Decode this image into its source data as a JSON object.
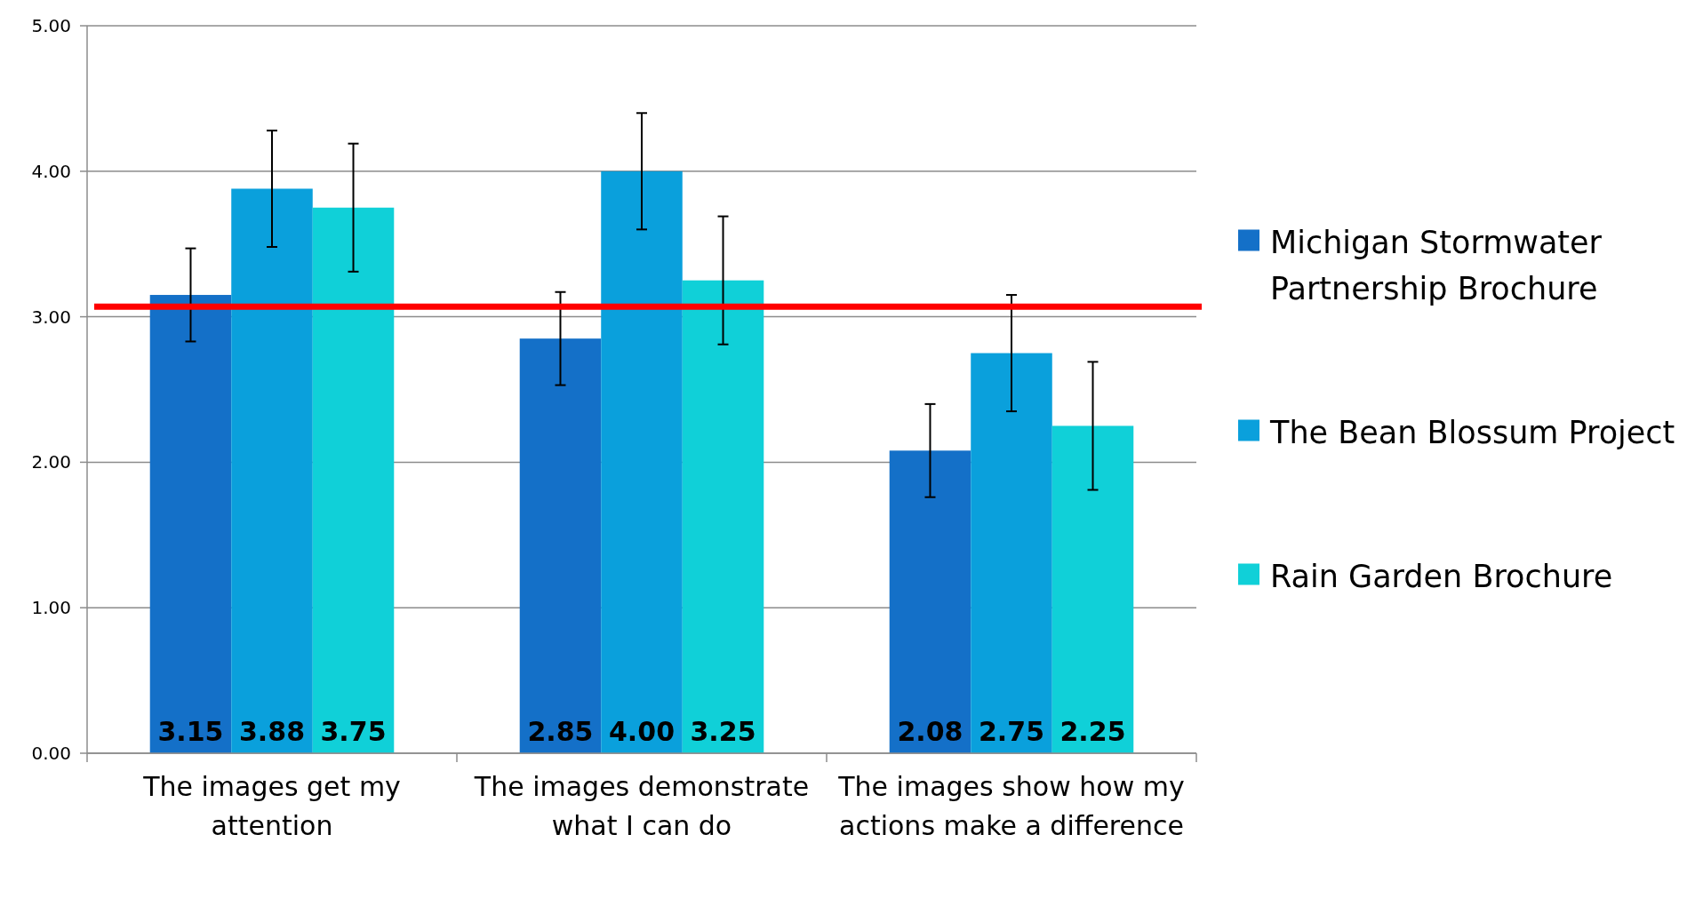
{
  "chart_data": {
    "type": "bar",
    "categories": [
      "The images get my attention",
      "The images demonstrate what I can do",
      "The images show how my actions make a difference"
    ],
    "series": [
      {
        "name": "Michigan Stormwater Partnership Brochure",
        "color": "#1470c8",
        "values": [
          3.15,
          2.85,
          2.08
        ],
        "errors": [
          0.32,
          0.32,
          0.32
        ],
        "value_labels": [
          "3.15",
          "2.85",
          "2.08"
        ]
      },
      {
        "name": "The Bean Blossum Project",
        "color": "#0aa0dc",
        "values": [
          3.88,
          4.0,
          2.75
        ],
        "errors": [
          0.4,
          0.4,
          0.4
        ],
        "value_labels": [
          "3.88",
          "4.00",
          "2.75"
        ]
      },
      {
        "name": "Rain Garden Brochure",
        "color": "#10d0d8",
        "values": [
          3.75,
          3.25,
          2.25
        ],
        "errors": [
          0.44,
          0.44,
          0.44
        ],
        "value_labels": [
          "3.75",
          "3.25",
          "2.25"
        ]
      }
    ],
    "ylim": [
      0,
      5
    ],
    "yticks": [
      {
        "value": 0,
        "label": "0.00"
      },
      {
        "value": 1,
        "label": "1.00"
      },
      {
        "value": 2,
        "label": "2.00"
      },
      {
        "value": 3,
        "label": "3.00"
      },
      {
        "value": 4,
        "label": "4.00"
      },
      {
        "value": 5,
        "label": "5.00"
      }
    ],
    "grid": "y",
    "legend": "right",
    "ref_lines": [
      {
        "axis": "y",
        "value": 3.07,
        "color": "#ff0000"
      }
    ]
  }
}
